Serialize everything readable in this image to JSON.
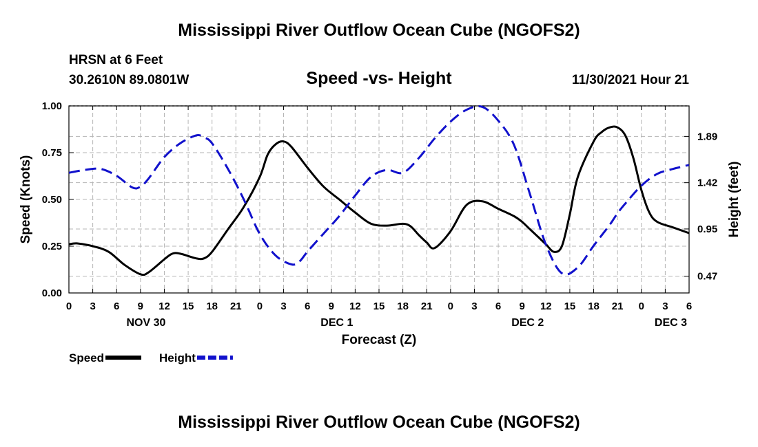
{
  "header": {
    "title": "Mississippi River Outflow Ocean Cube (NGOFS2)",
    "station": "HRSN at 6 Feet",
    "coords": "30.2610N  89.0801W",
    "subtitle": "Speed -vs- Height",
    "datetime": "11/30/2021 Hour 21",
    "footer_title": "Mississippi River Outflow Ocean Cube (NGOFS2)"
  },
  "chart_data": {
    "type": "line",
    "title": "Speed -vs- Height",
    "xlabel": "Forecast (Z)",
    "ylabel": "Speed (Knots)",
    "y2label": "Height (feet)",
    "x_unit": "forecast hour from 2021-11-30 00Z",
    "xlim": [
      0,
      78
    ],
    "ylim": [
      0,
      1
    ],
    "y2lim": [
      0.3,
      2.2
    ],
    "x_tick_values": [
      0,
      3,
      6,
      9,
      12,
      15,
      18,
      21,
      24,
      27,
      30,
      33,
      36,
      39,
      42,
      45,
      48,
      51,
      54,
      57,
      60,
      63,
      66,
      69,
      72,
      75,
      78
    ],
    "x_tick_labels": [
      "0",
      "3",
      "6",
      "9",
      "12",
      "15",
      "18",
      "21",
      "0",
      "3",
      "6",
      "9",
      "12",
      "15",
      "18",
      "21",
      "0",
      "3",
      "6",
      "9",
      "12",
      "15",
      "18",
      "21",
      "0",
      "3",
      "6"
    ],
    "day_labels": [
      {
        "label": "NOV 30",
        "x": 9.7
      },
      {
        "label": "DEC 1",
        "x": 33.7
      },
      {
        "label": "DEC 2",
        "x": 57.7
      },
      {
        "label": "DEC 3",
        "x": 75.7
      }
    ],
    "y_ticks": [
      "0.00",
      "0.25",
      "0.50",
      "0.75",
      "1.00"
    ],
    "y_tick_values": [
      0,
      0.25,
      0.5,
      0.75,
      1.0
    ],
    "y2_ticks": [
      "0.47",
      "0.95",
      "1.42",
      "1.89"
    ],
    "y2_tick_values": [
      0.47,
      0.95,
      1.42,
      1.89
    ],
    "grid": true,
    "legend_position": "bottom-left",
    "series": [
      {
        "name": "Speed",
        "axis": "left",
        "color": "#000000",
        "dash": "solid",
        "x": [
          0,
          1,
          3,
          5,
          7,
          9,
          10,
          12,
          13,
          14,
          16,
          17,
          18,
          20,
          22,
          24,
          25,
          26,
          27,
          28,
          30,
          32,
          34,
          36,
          38,
          40,
          42,
          43,
          44,
          45,
          46,
          48,
          50,
          52,
          54,
          56,
          57,
          58,
          59,
          60,
          61,
          62,
          63,
          64,
          66,
          67,
          68,
          69,
          70,
          71,
          72,
          73,
          74,
          76,
          78
        ],
        "values": [
          0.26,
          0.265,
          0.25,
          0.22,
          0.15,
          0.1,
          0.11,
          0.18,
          0.21,
          0.21,
          0.185,
          0.185,
          0.22,
          0.34,
          0.46,
          0.62,
          0.74,
          0.795,
          0.81,
          0.78,
          0.67,
          0.57,
          0.5,
          0.43,
          0.37,
          0.36,
          0.37,
          0.355,
          0.31,
          0.27,
          0.24,
          0.33,
          0.47,
          0.49,
          0.45,
          0.41,
          0.38,
          0.34,
          0.3,
          0.26,
          0.22,
          0.25,
          0.42,
          0.62,
          0.81,
          0.86,
          0.885,
          0.885,
          0.84,
          0.72,
          0.55,
          0.43,
          0.38,
          0.35,
          0.32
        ]
      },
      {
        "name": "Height",
        "axis": "right",
        "color": "#1111cc",
        "dash": "dashed",
        "x": [
          0,
          2,
          4,
          6,
          8,
          9,
          10,
          12,
          14,
          16,
          17,
          18,
          20,
          22,
          24,
          26,
          28,
          29,
          30,
          32,
          34,
          36,
          38,
          40,
          42,
          44,
          46,
          48,
          50,
          52,
          54,
          56,
          58,
          60,
          62,
          64,
          66,
          68,
          69,
          70,
          72,
          74,
          76,
          78
        ],
        "values": [
          1.52,
          1.55,
          1.56,
          1.49,
          1.37,
          1.38,
          1.46,
          1.68,
          1.82,
          1.9,
          1.88,
          1.82,
          1.56,
          1.25,
          0.9,
          0.68,
          0.59,
          0.62,
          0.72,
          0.9,
          1.08,
          1.29,
          1.48,
          1.55,
          1.52,
          1.67,
          1.87,
          2.04,
          2.16,
          2.19,
          2.05,
          1.8,
          1.3,
          0.79,
          0.5,
          0.56,
          0.78,
          0.99,
          1.11,
          1.21,
          1.39,
          1.51,
          1.56,
          1.6
        ]
      }
    ]
  }
}
